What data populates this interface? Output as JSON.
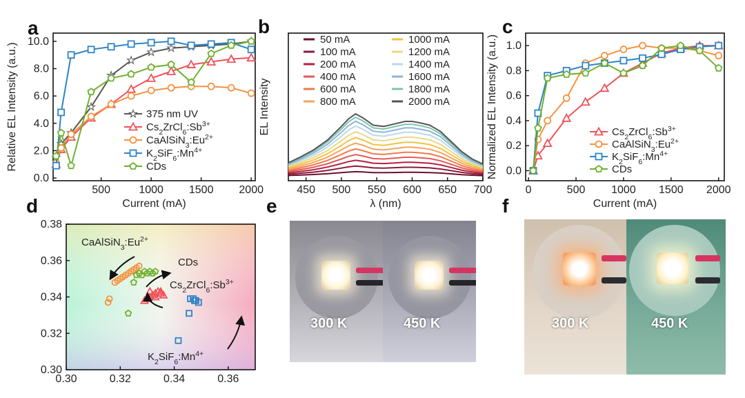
{
  "panels": {
    "a": "a",
    "b": "b",
    "c": "c",
    "d": "d",
    "e": "e",
    "f": "f"
  },
  "chart_data": [
    {
      "id": "a",
      "type": "line",
      "xlabel": "Current (mA)",
      "ylabel": "Relative EL Intensity (a.u.)",
      "xlim": [
        20,
        2040
      ],
      "ylim": [
        -0.2,
        10.6
      ],
      "xticks": [
        500,
        1000,
        1500,
        2000
      ],
      "yticks": [
        0,
        2,
        4,
        6,
        8,
        10
      ],
      "ytick_labels": [
        "0.0",
        "2.0",
        "4.0",
        "6.0",
        "8.0",
        "10.0"
      ],
      "legend_position": "middle-left",
      "series": [
        {
          "name": "375 nm UV",
          "name_parts": [
            [
              "375 nm UV",
              ""
            ]
          ],
          "color": "#555555",
          "marker": "star",
          "x": [
            50,
            100,
            200,
            400,
            600,
            800,
            1000,
            1200,
            1400,
            1600,
            1800,
            2000
          ],
          "y": [
            1.5,
            2.5,
            3.3,
            5.2,
            7.5,
            8.6,
            9.2,
            9.5,
            9.6,
            9.7,
            9.8,
            10.0
          ]
        },
        {
          "name": "Cs2ZrCl6:Sb3+",
          "name_parts": [
            [
              "Cs",
              ""
            ],
            [
              "2",
              "sub"
            ],
            [
              "ZrCl",
              ""
            ],
            [
              "6",
              "sub"
            ],
            [
              ":Sb",
              ""
            ],
            [
              "3+",
              "sup"
            ]
          ],
          "color": "#f0515a",
          "marker": "triangle",
          "x": [
            50,
            100,
            200,
            400,
            600,
            800,
            1000,
            1200,
            1400,
            1600,
            1800,
            2000
          ],
          "y": [
            1.0,
            2.1,
            3.0,
            4.4,
            5.4,
            6.5,
            7.3,
            7.8,
            8.3,
            8.5,
            8.7,
            8.8
          ]
        },
        {
          "name": "CaAlSiN3:Eu2+",
          "name_parts": [
            [
              "CaAlSiN",
              ""
            ],
            [
              "3",
              "sub"
            ],
            [
              ":Eu",
              ""
            ],
            [
              "2+",
              "sup"
            ]
          ],
          "color": "#f5923e",
          "marker": "circle",
          "x": [
            50,
            100,
            200,
            400,
            600,
            800,
            1000,
            1200,
            1400,
            1600,
            1800,
            2000
          ],
          "y": [
            1.1,
            2.2,
            3.2,
            4.5,
            5.4,
            6.0,
            6.4,
            6.6,
            6.7,
            6.7,
            6.6,
            6.2
          ]
        },
        {
          "name": "K2SiF6:Mn4+",
          "name_parts": [
            [
              "K",
              ""
            ],
            [
              "2",
              "sub"
            ],
            [
              "SiF",
              ""
            ],
            [
              "6",
              "sub"
            ],
            [
              ":Mn",
              ""
            ],
            [
              "4+",
              "sup"
            ]
          ],
          "color": "#2c84c6",
          "marker": "square",
          "x": [
            50,
            100,
            200,
            400,
            600,
            800,
            1000,
            1200,
            1400,
            1600,
            1800,
            2000
          ],
          "y": [
            0.9,
            4.8,
            9.0,
            9.4,
            9.6,
            9.8,
            9.9,
            10.0,
            9.7,
            9.8,
            9.9,
            9.4
          ]
        },
        {
          "name": "CDs",
          "name_parts": [
            [
              "CDs",
              ""
            ]
          ],
          "color": "#6fb02e",
          "marker": "pentagon",
          "x": [
            50,
            100,
            200,
            400,
            600,
            800,
            1000,
            1200,
            1400,
            1600,
            1800,
            2000
          ],
          "y": [
            1.6,
            3.3,
            0.9,
            6.3,
            7.3,
            7.6,
            8.1,
            8.3,
            7.0,
            9.1,
            9.7,
            10.0
          ]
        }
      ]
    },
    {
      "id": "b",
      "type": "line",
      "xlabel": "λ (nm)",
      "ylabel": "EL Intensity",
      "xlim": [
        425,
        700
      ],
      "ylim": [
        0,
        1
      ],
      "xticks": [
        450,
        500,
        550,
        600,
        650,
        700
      ],
      "legend_position": "top",
      "series": [
        {
          "name": "50 mA",
          "color": "#6b0f2f",
          "scale": 0.06
        },
        {
          "name": "100 mA",
          "color": "#8c1a3a",
          "scale": 0.13
        },
        {
          "name": "200 mA",
          "color": "#b3203f",
          "scale": 0.2
        },
        {
          "name": "400 mA",
          "color": "#e15a5a",
          "scale": 0.27
        },
        {
          "name": "600 mA",
          "color": "#ef7a45",
          "scale": 0.34
        },
        {
          "name": "800 mA",
          "color": "#f5a35c",
          "scale": 0.41
        },
        {
          "name": "1000 mA",
          "color": "#f3c240",
          "scale": 0.48
        },
        {
          "name": "1200 mA",
          "color": "#ead883",
          "scale": 0.55
        },
        {
          "name": "1400 mA",
          "color": "#b9d9ea",
          "scale": 0.62
        },
        {
          "name": "1600 mA",
          "color": "#8fb3d8",
          "scale": 0.68
        },
        {
          "name": "1800 mA",
          "color": "#7cc5ac",
          "scale": 0.73
        },
        {
          "name": "2000 mA",
          "color": "#555555",
          "scale": 0.77
        }
      ],
      "shape_x": [
        425,
        440,
        460,
        480,
        500,
        510,
        520,
        530,
        545,
        560,
        575,
        590,
        600,
        610,
        625,
        640,
        655,
        670,
        685,
        700
      ],
      "shape_y": [
        0.22,
        0.3,
        0.42,
        0.58,
        0.8,
        0.92,
        1.0,
        0.94,
        0.82,
        0.8,
        0.84,
        0.88,
        0.88,
        0.86,
        0.82,
        0.72,
        0.56,
        0.4,
        0.28,
        0.2
      ]
    },
    {
      "id": "c",
      "type": "line",
      "xlabel": "Current (mA)",
      "ylabel": "Normalized EL Intensity (a.u.)",
      "xlim": [
        -30,
        2060
      ],
      "ylim": [
        -0.08,
        1.1
      ],
      "xticks": [
        0,
        500,
        1000,
        1500,
        2000
      ],
      "yticks": [
        0,
        0.2,
        0.4,
        0.6,
        0.8,
        1.0
      ],
      "ytick_labels": [
        "0.0",
        "0.2",
        "0.4",
        "0.6",
        "0.8",
        "1.0"
      ],
      "legend_position": "middle",
      "series": [
        {
          "name": "Cs2ZrCl6:Sb3+",
          "name_parts": [
            [
              "Cs",
              ""
            ],
            [
              "2",
              "sub"
            ],
            [
              "ZrCl",
              ""
            ],
            [
              "6",
              "sub"
            ],
            [
              ":Sb",
              ""
            ],
            [
              "3+",
              "sup"
            ]
          ],
          "color": "#f0515a",
          "marker": "triangle",
          "x": [
            50,
            100,
            200,
            400,
            600,
            800,
            1000,
            1200,
            1400,
            1600,
            1800,
            2000
          ],
          "y": [
            0.0,
            0.12,
            0.22,
            0.42,
            0.55,
            0.66,
            0.78,
            0.86,
            0.94,
            0.98,
            1.0,
            1.0
          ]
        },
        {
          "name": "CaAlSiN3:Eu2+",
          "name_parts": [
            [
              "CaAlSiN",
              ""
            ],
            [
              "3",
              "sub"
            ],
            [
              ":Eu",
              ""
            ],
            [
              "2+",
              "sup"
            ]
          ],
          "color": "#f5923e",
          "marker": "circle",
          "x": [
            50,
            100,
            200,
            400,
            600,
            800,
            1000,
            1200,
            1400,
            1600,
            1800,
            2000
          ],
          "y": [
            0.0,
            0.25,
            0.4,
            0.58,
            0.86,
            0.92,
            0.97,
            1.0,
            0.98,
            0.98,
            0.96,
            0.92
          ]
        },
        {
          "name": "K2SiF6:Mn4+",
          "name_parts": [
            [
              "K",
              ""
            ],
            [
              "2",
              "sub"
            ],
            [
              "SiF",
              ""
            ],
            [
              "6",
              "sub"
            ],
            [
              ":Mn",
              ""
            ],
            [
              "4+",
              "sup"
            ]
          ],
          "color": "#2c84c6",
          "marker": "square",
          "x": [
            50,
            100,
            200,
            400,
            600,
            800,
            1000,
            1200,
            1400,
            1600,
            1800,
            2000
          ],
          "y": [
            0.0,
            0.46,
            0.76,
            0.8,
            0.84,
            0.86,
            0.88,
            0.9,
            0.93,
            0.97,
            0.99,
            1.0
          ]
        },
        {
          "name": "CDs",
          "name_parts": [
            [
              "CDs",
              ""
            ]
          ],
          "color": "#6fb02e",
          "marker": "pentagon",
          "x": [
            50,
            100,
            200,
            400,
            600,
            800,
            1000,
            1200,
            1400,
            1600,
            1800,
            2000
          ],
          "y": [
            0.0,
            0.34,
            0.74,
            0.77,
            0.78,
            0.86,
            0.78,
            0.84,
            0.98,
            1.0,
            0.96,
            0.82
          ]
        }
      ]
    },
    {
      "id": "d",
      "type": "scatter",
      "xlim": [
        0.3,
        0.37
      ],
      "ylim": [
        0.3,
        0.38
      ],
      "xticks": [
        0.3,
        0.32,
        0.34,
        0.36
      ],
      "yticks": [
        0.3,
        0.32,
        0.34,
        0.36,
        0.38
      ],
      "xtick_labels": [
        "0.30",
        "0.32",
        "0.34",
        "0.36"
      ],
      "ytick_labels": [
        "0.30",
        "0.32",
        "0.34",
        "0.36",
        "0.38"
      ],
      "series": [
        {
          "name": "CaAlSiN3:Eu2+",
          "name_parts": [
            [
              "CaAlSiN",
              ""
            ],
            [
              "3",
              "sub"
            ],
            [
              ":Eu",
              ""
            ],
            [
              "2+",
              "sup"
            ]
          ],
          "color": "#f5923e",
          "marker": "circle",
          "x": [
            0.3155,
            0.316,
            0.318,
            0.319,
            0.32,
            0.321,
            0.322,
            0.323,
            0.324,
            0.325,
            0.326,
            0.327
          ],
          "y": [
            0.337,
            0.339,
            0.348,
            0.349,
            0.35,
            0.351,
            0.352,
            0.353,
            0.354,
            0.355,
            0.356,
            0.357
          ]
        },
        {
          "name": "CDs",
          "name_parts": [
            [
              "CDs",
              ""
            ]
          ],
          "color": "#6fb02e",
          "marker": "pentagon",
          "x": [
            0.323,
            0.325,
            0.326,
            0.327,
            0.328,
            0.329,
            0.33,
            0.331,
            0.332,
            0.333
          ],
          "y": [
            0.331,
            0.348,
            0.352,
            0.353,
            0.352,
            0.354,
            0.353,
            0.354,
            0.353,
            0.354
          ]
        },
        {
          "name": "Cs2ZrCl6:Sb3+",
          "name_parts": [
            [
              "Cs",
              ""
            ],
            [
              "2",
              "sub"
            ],
            [
              "ZrCl",
              ""
            ],
            [
              "6",
              "sub"
            ],
            [
              ":Sb",
              ""
            ],
            [
              "3+",
              "sup"
            ]
          ],
          "color": "#f0515a",
          "marker": "triangle",
          "x": [
            0.329,
            0.33,
            0.331,
            0.332,
            0.333,
            0.334,
            0.335,
            0.336,
            0.331,
            0.333,
            0.335
          ],
          "y": [
            0.338,
            0.339,
            0.34,
            0.341,
            0.342,
            0.343,
            0.342,
            0.341,
            0.343,
            0.34,
            0.343
          ]
        },
        {
          "name": "K2SiF6:Mn4+",
          "name_parts": [
            [
              "K",
              ""
            ],
            [
              "2",
              "sub"
            ],
            [
              "SiF",
              ""
            ],
            [
              "6",
              "sub"
            ],
            [
              ":Mn",
              ""
            ],
            [
              "4+",
              "sup"
            ]
          ],
          "color": "#2c84c6",
          "marker": "square",
          "x": [
            0.3415,
            0.3455,
            0.346,
            0.347,
            0.3475,
            0.348,
            0.349
          ],
          "y": [
            0.316,
            0.331,
            0.339,
            0.339,
            0.338,
            0.338,
            0.337
          ]
        }
      ]
    }
  ],
  "photos": {
    "e": {
      "left_label": "300 K",
      "right_label": "450 K"
    },
    "f": {
      "left_label": "300 K",
      "right_label": "450 K"
    }
  }
}
